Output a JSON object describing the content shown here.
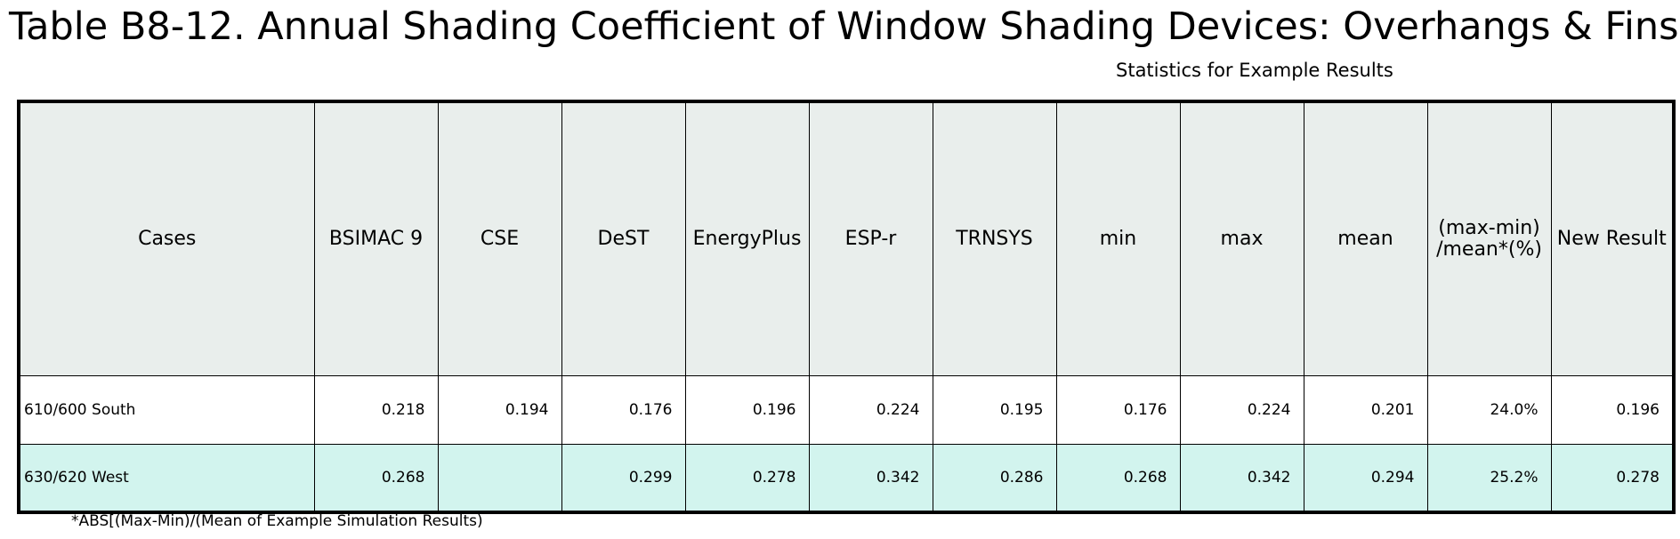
{
  "title": "Table B8-12. Annual Shading Coefficient of Window Shading Devices: Overhangs & Fins",
  "subtitle": "Statistics for Example Results",
  "table": {
    "headers": [
      "Cases",
      "BSIMAC 9",
      "CSE",
      "DeST",
      "EnergyPlus",
      "ESP-r",
      "TRNSYS",
      "min",
      "max",
      "mean",
      "(max-min) /mean*(%)",
      "New Result"
    ],
    "rows": [
      [
        "610/600 South",
        "0.218",
        "0.194",
        "0.176",
        "0.196",
        "0.224",
        "0.195",
        "0.176",
        "0.224",
        "0.201",
        "24.0%",
        "0.196"
      ],
      [
        "630/620 West",
        "0.268",
        "",
        "0.299",
        "0.278",
        "0.342",
        "0.286",
        "0.268",
        "0.342",
        "0.294",
        "25.2%",
        "0.278"
      ]
    ]
  },
  "footnote": "*ABS[(Max-Min)/(Mean of Example Simulation Results)",
  "colors": {
    "header_bg": "#e9eeec",
    "row_alt_bg": "#d2f4ee",
    "border": "#000000"
  }
}
